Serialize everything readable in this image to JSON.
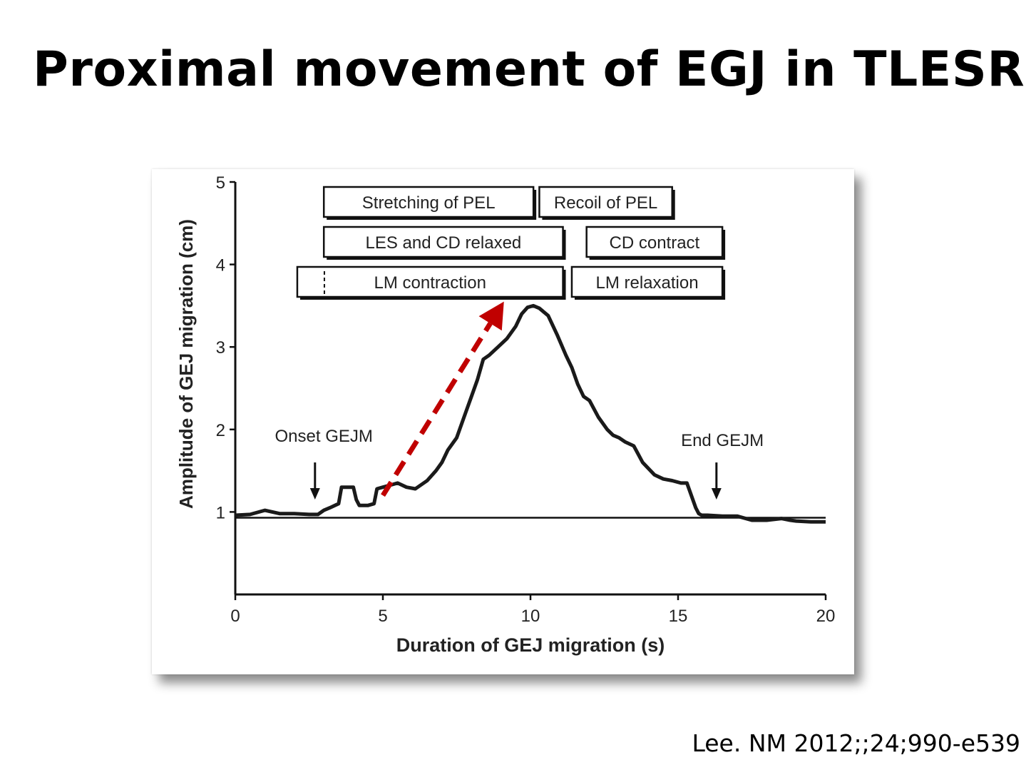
{
  "slide": {
    "title": "Proximal movement of EGJ in TLESR",
    "citation": "Lee. NM 2012;;24;990-e539"
  },
  "chart_data": {
    "type": "line",
    "xlabel": "Duration of  GEJ migration (s)",
    "ylabel": "Amplitude of GEJ migration (cm)",
    "xlim": [
      0,
      20
    ],
    "ylim": [
      0,
      5
    ],
    "x_ticks": [
      0,
      5,
      10,
      15,
      20
    ],
    "y_ticks": [
      1,
      2,
      3,
      4,
      5
    ],
    "grid": false,
    "baseline": 0.93,
    "series": [
      {
        "color": "#1a1a1a",
        "x": [
          0.0,
          0.5,
          1.0,
          1.5,
          2.0,
          2.5,
          2.8,
          3.0,
          3.2,
          3.5,
          3.6,
          3.7,
          4.0,
          4.1,
          4.2,
          4.5,
          4.7,
          4.8,
          5.0,
          5.2,
          5.5,
          5.8,
          6.1,
          6.5,
          6.8,
          7.0,
          7.2,
          7.5,
          7.8,
          8.0,
          8.2,
          8.4,
          8.6,
          8.9,
          9.2,
          9.5,
          9.7,
          9.9,
          10.1,
          10.3,
          10.6,
          10.9,
          11.2,
          11.4,
          11.6,
          11.8,
          12.0,
          12.3,
          12.6,
          12.8,
          13.0,
          13.2,
          13.5,
          13.8,
          14.2,
          14.5,
          14.8,
          15.1,
          15.3,
          15.5,
          15.6,
          15.7,
          15.8,
          16.0,
          16.5,
          17.0,
          17.5,
          18.0,
          18.5,
          18.8,
          19.0,
          19.5,
          20.0
        ],
        "values": [
          0.96,
          0.97,
          1.02,
          0.98,
          0.98,
          0.97,
          0.97,
          1.02,
          1.05,
          1.1,
          1.3,
          1.3,
          1.3,
          1.15,
          1.08,
          1.08,
          1.1,
          1.28,
          1.3,
          1.32,
          1.35,
          1.3,
          1.28,
          1.38,
          1.5,
          1.6,
          1.75,
          1.9,
          2.2,
          2.4,
          2.6,
          2.85,
          2.9,
          3.0,
          3.1,
          3.25,
          3.4,
          3.48,
          3.5,
          3.47,
          3.38,
          3.15,
          2.9,
          2.75,
          2.55,
          2.4,
          2.35,
          2.15,
          2.0,
          1.93,
          1.9,
          1.85,
          1.8,
          1.6,
          1.45,
          1.4,
          1.38,
          1.35,
          1.35,
          1.15,
          1.05,
          0.98,
          0.96,
          0.96,
          0.95,
          0.95,
          0.9,
          0.9,
          0.92,
          0.9,
          0.89,
          0.88,
          0.88
        ]
      }
    ],
    "annotations": [
      {
        "text": "Onset GEJM",
        "x": 3.0,
        "y": 1.85
      },
      {
        "text": "End GEJM",
        "x": 16.5,
        "y": 1.8
      }
    ],
    "markers": [
      {
        "type": "arrow-down",
        "x": 2.7,
        "y_from": 1.6,
        "y_to": 1.15
      },
      {
        "type": "arrow-down",
        "x": 16.3,
        "y_from": 1.6,
        "y_to": 1.15
      },
      {
        "type": "dashed-arrow",
        "color": "#c00000",
        "x_from": 5.0,
        "y_from": 1.2,
        "x_to": 9.1,
        "y_to": 3.55
      }
    ],
    "phase_boxes": [
      {
        "label": "Stretching of PEL",
        "x_start": 3.0,
        "x_end": 10.1,
        "row": 1
      },
      {
        "label": "Recoil of PEL",
        "x_start": 10.3,
        "x_end": 14.8,
        "row": 1
      },
      {
        "label": "LES and CD relaxed",
        "x_start": 3.0,
        "x_end": 11.1,
        "row": 2
      },
      {
        "label": "CD contract",
        "x_start": 11.9,
        "x_end": 16.5,
        "row": 2
      },
      {
        "label": "LM contraction",
        "x_start": 2.1,
        "x_end": 11.1,
        "row": 3
      },
      {
        "label": "LM relaxation",
        "x_start": 11.4,
        "x_end": 16.5,
        "row": 3
      }
    ]
  }
}
